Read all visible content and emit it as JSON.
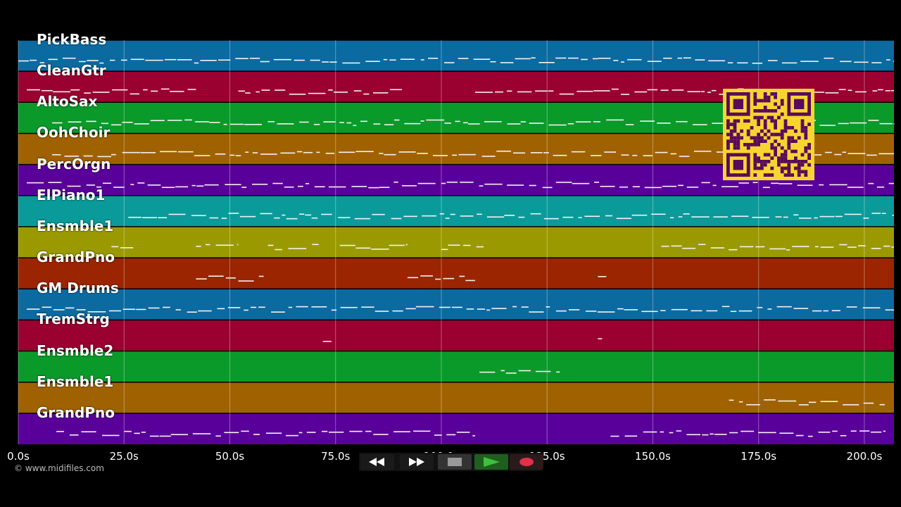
{
  "app": {
    "copyright": "© www.midifiles.com"
  },
  "tracks": [
    {
      "name": "PickBass",
      "color": "#0b6aa0"
    },
    {
      "name": "CleanGtr",
      "color": "#9a0030"
    },
    {
      "name": "AltoSax",
      "color": "#0a9a2a"
    },
    {
      "name": "OohChoir",
      "color": "#a06200"
    },
    {
      "name": "PercOrgn",
      "color": "#5a009a"
    },
    {
      "name": "ElPiano1",
      "color": "#0a9a9a"
    },
    {
      "name": "Ensmble1",
      "color": "#9a9a00"
    },
    {
      "name": "GrandPno",
      "color": "#9a2500"
    },
    {
      "name": "GM Drums",
      "color": "#0b6aa0"
    },
    {
      "name": "TremStrg",
      "color": "#9a0030"
    },
    {
      "name": "Ensmble2",
      "color": "#0a9a2a"
    },
    {
      "name": "Ensmble1",
      "color": "#a06200"
    },
    {
      "name": "GrandPno",
      "color": "#5a009a"
    }
  ],
  "time_axis": {
    "max_seconds": 207,
    "ticks": [
      "0.0s",
      "25.0s",
      "50.0s",
      "75.0s",
      "100.0s",
      "125.0s",
      "150.0s",
      "175.0s",
      "200.0s"
    ],
    "tick_values": [
      0,
      25,
      50,
      75,
      100,
      125,
      150,
      175,
      200
    ]
  },
  "transport": {
    "rewind": "rewind-icon",
    "fast_forward": "fast-forward-icon",
    "stop": "stop-icon",
    "play": "play-icon",
    "record": "record-icon",
    "colors": {
      "play": "#2e8b2e",
      "record": "#e0304a",
      "stop_bg": "#555",
      "btn_bg": "#1a1a1a"
    }
  },
  "qr": {
    "color": "#f7d530",
    "dark": "#5a0a5a"
  }
}
